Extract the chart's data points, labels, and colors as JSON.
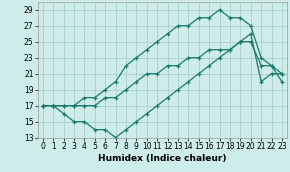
{
  "xlabel": "Humidex (Indice chaleur)",
  "xlim": [
    -0.5,
    23.5
  ],
  "ylim": [
    13,
    30
  ],
  "yticks": [
    13,
    15,
    17,
    19,
    21,
    23,
    25,
    27,
    29
  ],
  "xticks": [
    0,
    1,
    2,
    3,
    4,
    5,
    6,
    7,
    8,
    9,
    10,
    11,
    12,
    13,
    14,
    15,
    16,
    17,
    18,
    19,
    20,
    21,
    22,
    23
  ],
  "background_color": "#ceecea",
  "grid_color": "#aed4d0",
  "line_color": "#1a7a6e",
  "line1_x": [
    0,
    1,
    2,
    3,
    4,
    5,
    6,
    7,
    8,
    9,
    10,
    11,
    12,
    13,
    14,
    15,
    16,
    17,
    18,
    19,
    20,
    21,
    22,
    23
  ],
  "line1_y": [
    17,
    17,
    17,
    17,
    18,
    18,
    19,
    20,
    22,
    23,
    24,
    25,
    26,
    27,
    27,
    28,
    28,
    29,
    28,
    28,
    27,
    23,
    22,
    20
  ],
  "line2_x": [
    0,
    1,
    2,
    3,
    4,
    5,
    6,
    7,
    8,
    9,
    10,
    11,
    12,
    13,
    14,
    15,
    16,
    17,
    18,
    19,
    20,
    21,
    22,
    23
  ],
  "line2_y": [
    17,
    17,
    17,
    17,
    17,
    17,
    18,
    18,
    19,
    20,
    21,
    21,
    22,
    22,
    23,
    23,
    24,
    24,
    24,
    25,
    25,
    22,
    22,
    21
  ],
  "line3_x": [
    0,
    1,
    2,
    3,
    4,
    5,
    6,
    7,
    8,
    9,
    10,
    11,
    12,
    13,
    14,
    15,
    16,
    17,
    18,
    19,
    20,
    21,
    22,
    23
  ],
  "line3_y": [
    17,
    17,
    16,
    15,
    15,
    14,
    14,
    13,
    14,
    15,
    16,
    17,
    18,
    19,
    20,
    21,
    22,
    23,
    24,
    25,
    26,
    20,
    21,
    21
  ]
}
